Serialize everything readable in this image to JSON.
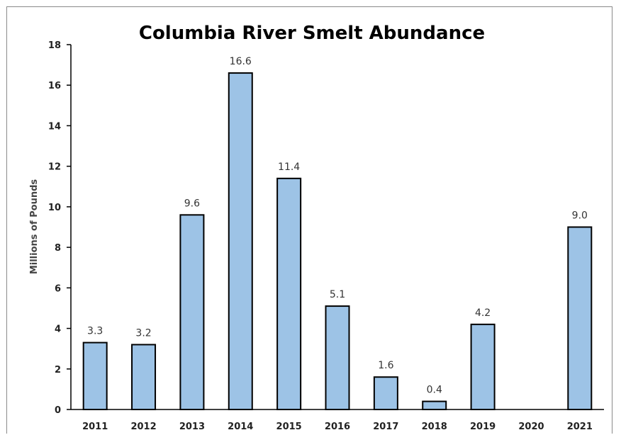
{
  "chart_data": {
    "type": "bar",
    "title": "Columbia River Smelt Abundance",
    "ylabel": "Millions of Pounds",
    "xlabel": "",
    "categories": [
      "2011",
      "2012",
      "2013",
      "2014",
      "2015",
      "2016",
      "2017",
      "2018",
      "2019",
      "2020",
      "2021"
    ],
    "values": [
      3.3,
      3.2,
      9.6,
      16.6,
      11.4,
      5.1,
      1.6,
      0.4,
      4.2,
      0,
      9.0
    ],
    "data_labels": [
      "3.3",
      "3.2",
      "9.6",
      "16.6",
      "11.4",
      "5.1",
      "1.6",
      "0.4",
      "4.2",
      "",
      "9.0"
    ],
    "ylim": [
      0,
      18
    ],
    "yticks": [
      "0",
      "2",
      "4",
      "6",
      "8",
      "10",
      "12",
      "14",
      "16",
      "18"
    ],
    "grid": false,
    "legend": "none",
    "colors": {
      "bar_fill": "#9dc3e6",
      "bar_stroke": "#000000"
    }
  }
}
